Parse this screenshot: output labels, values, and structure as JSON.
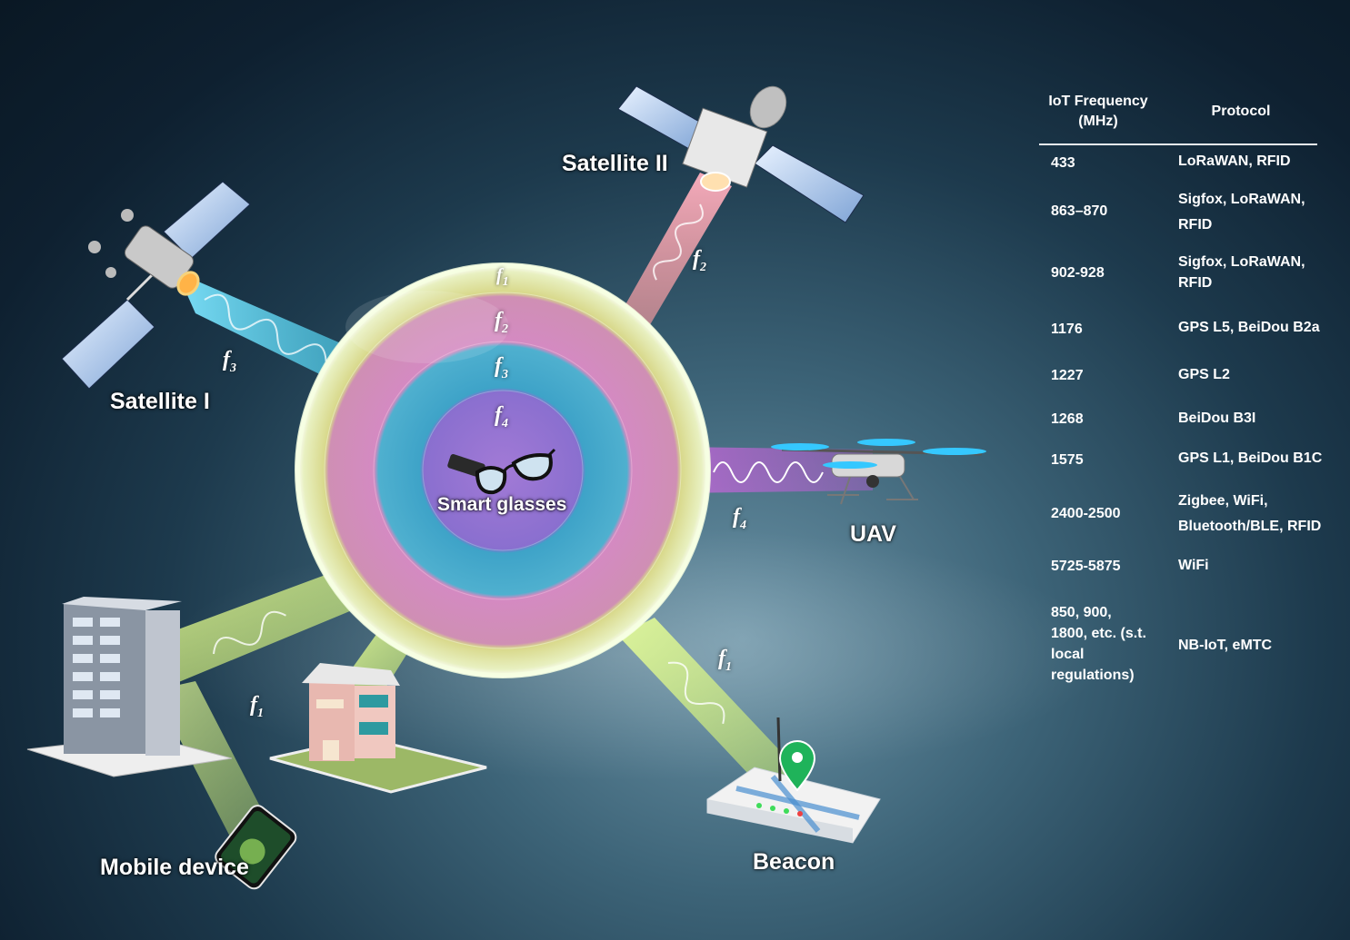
{
  "labels": {
    "satellite_1": "Satellite I",
    "satellite_2": "Satellite II",
    "uav": "UAV",
    "smart_glasses": "Smart glasses",
    "mobile_device": "Mobile device",
    "beacon": "Beacon"
  },
  "frequency_symbols": {
    "f1": {
      "base": "f",
      "sub": "1"
    },
    "f2": {
      "base": "f",
      "sub": "2"
    },
    "f3": {
      "base": "f",
      "sub": "3"
    },
    "f4": {
      "base": "f",
      "sub": "4"
    }
  },
  "table": {
    "header_frequency": "IoT Frequency (MHz)",
    "header_protocol": "Protocol",
    "rows": [
      {
        "frequency": "433",
        "protocol": "LoRaWAN, RFID"
      },
      {
        "frequency": "863–870",
        "protocol": "Sigfox, LoRaWAN, RFID"
      },
      {
        "frequency": "902-928",
        "protocol": "Sigfox, LoRaWAN, RFID"
      },
      {
        "frequency": "1176",
        "protocol": "GPS L5, BeiDou B2a"
      },
      {
        "frequency": "1227",
        "protocol": "GPS L2"
      },
      {
        "frequency": "1268",
        "protocol": "BeiDou B3I"
      },
      {
        "frequency": "1575",
        "protocol": "GPS L1, BeiDou B1C"
      },
      {
        "frequency": "2400-2500",
        "protocol": "Zigbee, WiFi, Bluetooth/BLE, RFID"
      },
      {
        "frequency": "5725-5875",
        "protocol": "WiFi"
      },
      {
        "frequency": "850, 900, 1800, etc. (s.t. local regulations)",
        "protocol": "NB-IoT, eMTC"
      }
    ]
  },
  "colors": {
    "f1_beam": "#d9f07a",
    "f2_beam": "#f07a9a",
    "f3_beam": "#3ec8e8",
    "f4_beam": "#d86ae0",
    "beacon_pin": "#1fb35a"
  }
}
